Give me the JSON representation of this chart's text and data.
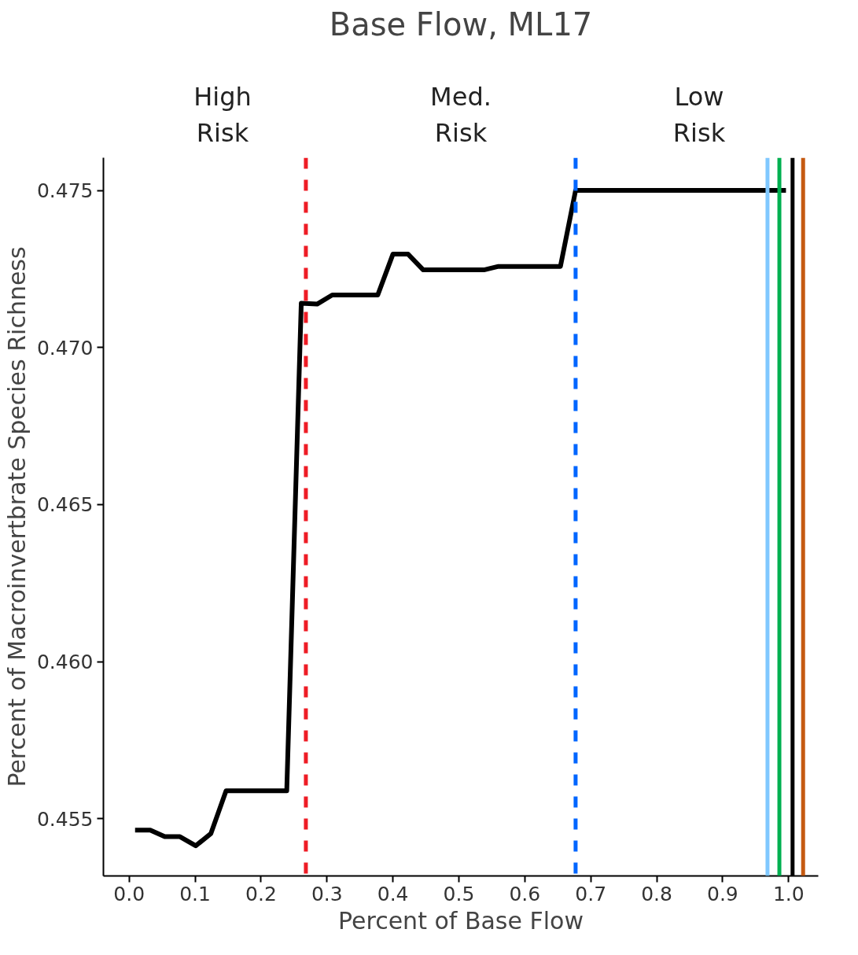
{
  "chart_data": {
    "type": "line",
    "title": "Base Flow, ML17",
    "xlabel": "Percent of Base Flow",
    "ylabel": "Percent of Macroinvertbrate Species Richness",
    "x": [
      0.009,
      0.032,
      0.054,
      0.077,
      0.101,
      0.124,
      0.147,
      0.239,
      0.261,
      0.285,
      0.308,
      0.377,
      0.4,
      0.423,
      0.446,
      0.538,
      0.56,
      0.654,
      0.677,
      0.996
    ],
    "series": [
      {
        "color": "#000000",
        "values": [
          0.45464,
          0.45464,
          0.45443,
          0.45443,
          0.45414,
          0.45453,
          0.45589,
          0.45589,
          0.47141,
          0.47138,
          0.47167,
          0.47167,
          0.47297,
          0.47297,
          0.47247,
          0.47247,
          0.47258,
          0.47258,
          0.475,
          0.475
        ]
      }
    ],
    "xlim": [
      -0.039,
      1.045
    ],
    "ylim": [
      0.45318,
      0.47604
    ],
    "xticks": [
      {
        "value": 0,
        "label": "0.0"
      },
      0.1,
      0.2,
      0.3,
      0.4,
      0.5,
      0.6,
      0.7,
      0.8,
      0.9,
      {
        "value": 1,
        "label": "1.0"
      }
    ],
    "yticks": [
      0.455,
      {
        "value": 0.46,
        "label": "0.460"
      },
      0.465,
      {
        "value": 0.47,
        "label": "0.470"
      },
      0.475
    ],
    "ref_lines": [
      {
        "axis": "x",
        "value": 0.268,
        "color": "#ee1c25",
        "line_style": "dashed"
      },
      {
        "axis": "x",
        "value": 0.677,
        "color": "#0066ff",
        "line_style": "dashed"
      },
      {
        "axis": "x",
        "value": 0.968,
        "color": "#80c8ff",
        "line_style": "solid"
      },
      {
        "axis": "x",
        "value": 0.986,
        "color": "#00b050",
        "line_style": "solid"
      },
      {
        "axis": "x",
        "value": 1.006,
        "color": "#000000",
        "line_style": "solid"
      },
      {
        "axis": "x",
        "value": 1.022,
        "color": "#c55a11",
        "line_style": "solid"
      }
    ],
    "annotations": [
      "High\nRisk",
      "Med.\nRisk",
      "Low\nRisk"
    ],
    "grid": false,
    "line_style": "solid",
    "marker": "none"
  }
}
